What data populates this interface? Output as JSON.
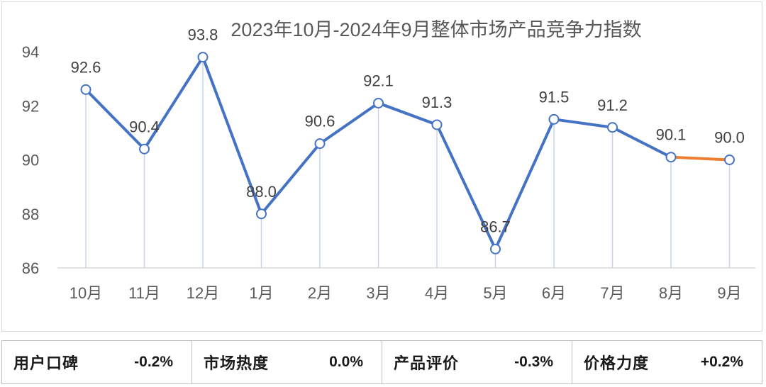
{
  "chart_data": {
    "type": "line",
    "title": "2023年10月-2024年9月整体市场产品竞争力指数",
    "categories": [
      "10月",
      "11月",
      "12月",
      "1月",
      "2月",
      "3月",
      "4月",
      "5月",
      "6月",
      "7月",
      "8月",
      "9月"
    ],
    "values": [
      92.6,
      90.4,
      93.8,
      88.0,
      90.6,
      92.1,
      91.3,
      86.7,
      91.5,
      91.2,
      90.1,
      90.0
    ],
    "value_labels": [
      "92.6",
      "90.4",
      "93.8",
      "88.0",
      "90.6",
      "92.1",
      "91.3",
      "86.7",
      "91.5",
      "91.2",
      "90.1",
      "90.0"
    ],
    "yticks": [
      86,
      88,
      90,
      92,
      94
    ],
    "ylim": [
      86,
      94
    ],
    "grid": false,
    "colors": {
      "line": "#4472c4",
      "last_segment": "#ed7d31",
      "drop_line": "#c9d5ea"
    }
  },
  "summary": [
    {
      "label": "用户口碑",
      "value": "-0.2%"
    },
    {
      "label": "市场热度",
      "value": "0.0%"
    },
    {
      "label": "产品评价",
      "value": "-0.3%"
    },
    {
      "label": "价格力度",
      "value": "+0.2%"
    }
  ]
}
